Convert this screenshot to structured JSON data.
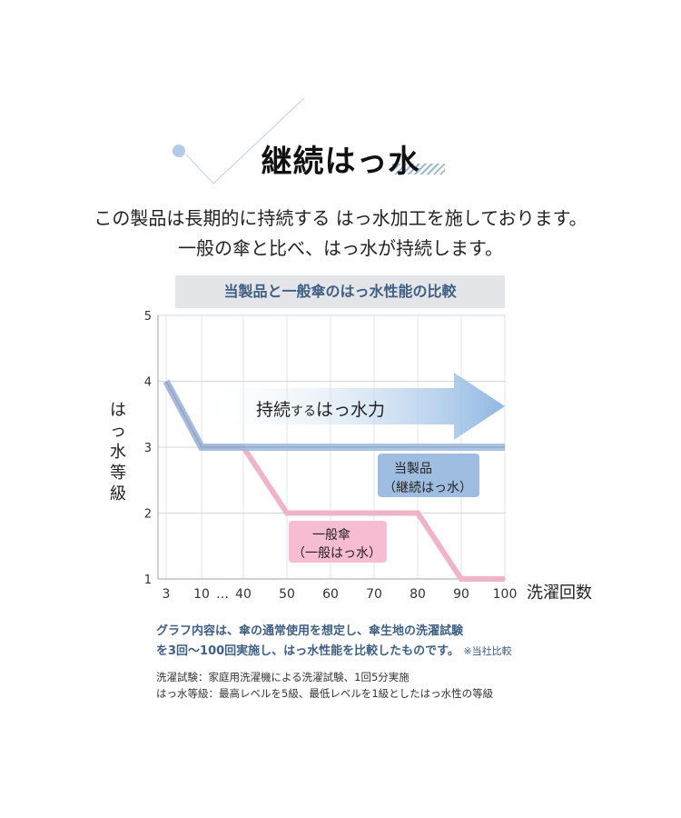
{
  "heading": "継続はっ水",
  "intro": {
    "line1": "この製品は長期的に持続する はっ水加工を施しております。",
    "line2": "一般の傘と比べ、はっ水が持続します。"
  },
  "chart_data": {
    "type": "line",
    "title": "当製品と一般傘のはっ水性能の比較",
    "xlabel": "洗濯回数",
    "ylabel": "はっ水等級",
    "ylim": [
      1,
      5
    ],
    "yticks": [
      "1",
      "2",
      "3",
      "4",
      "5"
    ],
    "xtick_labels": [
      "3",
      "10",
      "…",
      "40",
      "50",
      "60",
      "70",
      "80",
      "90",
      "100"
    ],
    "x": [
      3,
      10,
      40,
      50,
      60,
      70,
      80,
      90,
      100
    ],
    "series": [
      {
        "name": "当製品",
        "label_line1": "当製品",
        "label_line2": "（継続はっ水）",
        "color": "#9cb9dc",
        "points": [
          [
            3,
            4
          ],
          [
            10,
            3
          ],
          [
            40,
            3
          ],
          [
            100,
            3
          ]
        ]
      },
      {
        "name": "一般傘",
        "label_line1": "一般傘",
        "label_line2": "（一般はっ水）",
        "color": "#f0b3cc",
        "points": [
          [
            3,
            4
          ],
          [
            10,
            3
          ],
          [
            40,
            3
          ],
          [
            50,
            2
          ],
          [
            80,
            2
          ],
          [
            90,
            1
          ],
          [
            100,
            1
          ]
        ]
      }
    ],
    "annotation": {
      "arrow_text_1": "持続",
      "arrow_text_2": "する",
      "arrow_text_3": "はっ水力"
    },
    "grid": true
  },
  "notes": {
    "summary_line1": "グラフ内容は、傘の通常使用を想定し、傘生地の洗濯試験",
    "summary_line2": "を3回〜100回実施し、はっ水性能を比較したものです。",
    "summary_suffix": "※当社比較",
    "detail_line1": "洗濯試験：家庭用洗濯機による洗濯試験、1回5分実施",
    "detail_line2": "はっ水等級：最高レベルを5級、最低レベルを1級としたはっ水性の等級"
  },
  "colors": {
    "accent": "#3f5f83",
    "product_line": "#9cb9dc",
    "general_line": "#f0b3cc",
    "label_product_bg": "#9fbde0",
    "label_general_bg": "#f5bcd2"
  }
}
